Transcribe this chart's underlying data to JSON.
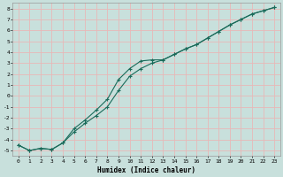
{
  "xlabel": "Humidex (Indice chaleur)",
  "xlim": [
    -0.5,
    23.5
  ],
  "ylim": [
    -5.5,
    8.5
  ],
  "xticks": [
    0,
    1,
    2,
    3,
    4,
    5,
    6,
    7,
    8,
    9,
    10,
    11,
    12,
    13,
    14,
    15,
    16,
    17,
    18,
    19,
    20,
    21,
    22,
    23
  ],
  "yticks": [
    -5,
    -4,
    -3,
    -2,
    -1,
    0,
    1,
    2,
    3,
    4,
    5,
    6,
    7,
    8
  ],
  "background_color": "#c8e0dc",
  "grid_color": "#e8b8b8",
  "line_color": "#1a6b5a",
  "line1_x": [
    0,
    1,
    2,
    3,
    4,
    5,
    6,
    7,
    8,
    9,
    10,
    11,
    12,
    13,
    14,
    15,
    16,
    17,
    18,
    19,
    20,
    21,
    22,
    23
  ],
  "line1_y": [
    -4.5,
    -5.0,
    -4.8,
    -4.9,
    -4.3,
    -3.0,
    -2.2,
    -1.3,
    -0.3,
    1.5,
    2.5,
    3.2,
    3.3,
    3.3,
    3.8,
    4.3,
    4.7,
    5.3,
    5.9,
    6.5,
    7.0,
    7.5,
    7.8,
    8.1
  ],
  "line2_x": [
    0,
    1,
    2,
    3,
    4,
    5,
    6,
    7,
    8,
    9,
    10,
    11,
    12,
    13,
    14,
    15,
    16,
    17,
    18,
    19,
    20,
    21,
    22,
    23
  ],
  "line2_y": [
    -4.5,
    -5.0,
    -4.8,
    -4.9,
    -4.3,
    -3.3,
    -2.5,
    -1.8,
    -1.0,
    0.5,
    1.8,
    2.5,
    3.0,
    3.3,
    3.8,
    4.3,
    4.7,
    5.3,
    5.9,
    6.5,
    7.0,
    7.5,
    7.8,
    8.1
  ]
}
